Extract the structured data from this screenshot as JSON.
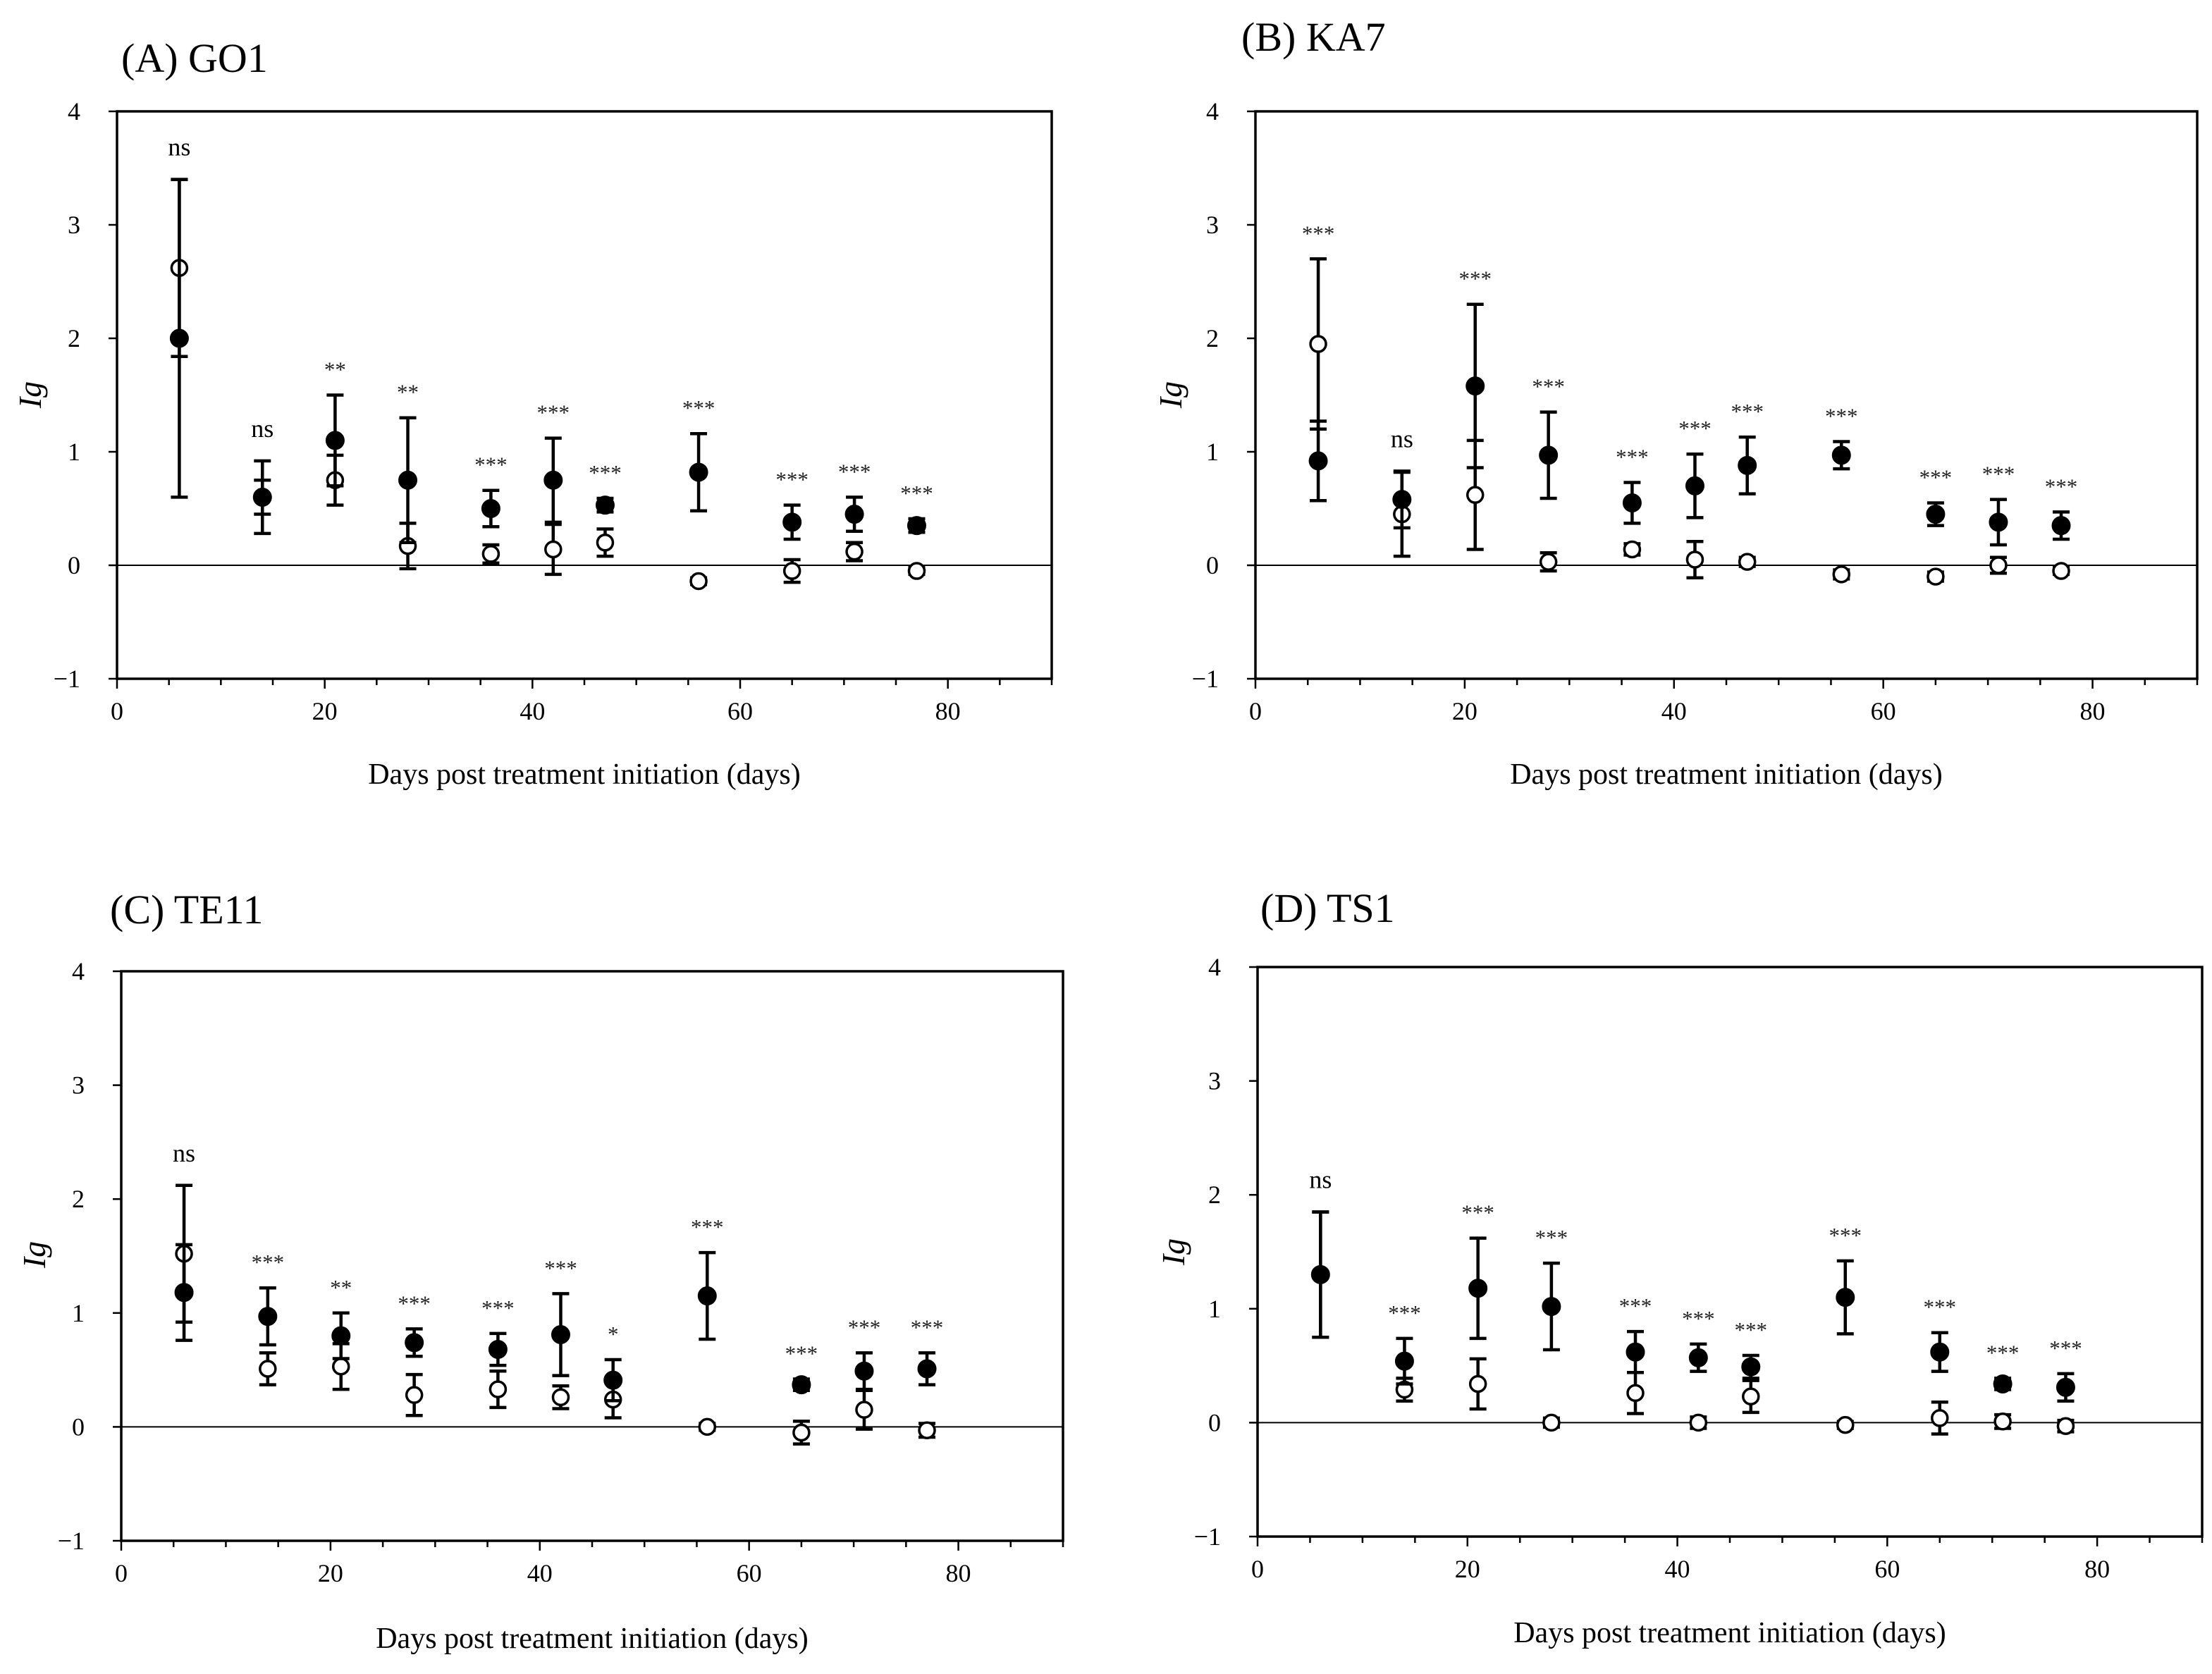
{
  "chart_data": [
    {
      "type": "scatter",
      "title": "(A) GO1",
      "xlabel": "Days post treatment initiation (days)",
      "ylabel": "Ig",
      "xlim": [
        0,
        90
      ],
      "ylim": [
        -1,
        4
      ],
      "xticks": [
        "0",
        "20",
        "40",
        "60",
        "80"
      ],
      "yticks": [
        "−1",
        "0",
        "1",
        "2",
        "3",
        "4"
      ],
      "x": [
        6,
        14,
        21,
        28,
        36,
        42,
        47,
        56,
        65,
        71,
        77
      ],
      "significance": [
        "ns",
        "ns",
        "**",
        "**",
        "***",
        "***",
        "***",
        "***",
        "***",
        "***",
        "***"
      ],
      "series": [
        {
          "name": "filled",
          "style": "filled",
          "values": [
            2.0,
            0.6,
            1.1,
            0.75,
            0.5,
            0.75,
            0.53,
            0.82,
            0.38,
            0.45,
            0.35
          ],
          "errors": [
            1.4,
            0.32,
            0.4,
            0.55,
            0.16,
            0.37,
            0.06,
            0.34,
            0.15,
            0.15,
            0.06
          ]
        },
        {
          "name": "open",
          "style": "open",
          "values": [
            2.62,
            0.6,
            0.75,
            0.17,
            0.1,
            0.14,
            0.2,
            -0.14,
            -0.05,
            0.12,
            -0.05
          ],
          "errors": [
            0.78,
            0.15,
            0.22,
            0.2,
            0.08,
            0.22,
            0.12,
            0.03,
            0.1,
            0.08,
            0.03
          ]
        }
      ]
    },
    {
      "type": "scatter",
      "title": "(B) KA7",
      "xlabel": "Days post treatment initiation (days)",
      "ylabel": "Ig",
      "xlim": [
        0,
        90
      ],
      "ylim": [
        -1,
        4
      ],
      "xticks": [
        "0",
        "20",
        "40",
        "60",
        "80"
      ],
      "yticks": [
        "−1",
        "0",
        "1",
        "2",
        "3",
        "4"
      ],
      "x": [
        6,
        14,
        21,
        28,
        36,
        42,
        47,
        56,
        65,
        71,
        77
      ],
      "significance": [
        "***",
        "ns",
        "***",
        "***",
        "***",
        "***",
        "***",
        "***",
        "***",
        "***",
        "***"
      ],
      "series": [
        {
          "name": "filled",
          "style": "filled",
          "values": [
            0.92,
            0.58,
            1.58,
            0.97,
            0.55,
            0.7,
            0.88,
            0.97,
            0.45,
            0.38,
            0.35
          ],
          "errors": [
            0.35,
            0.25,
            0.72,
            0.38,
            0.18,
            0.28,
            0.25,
            0.12,
            0.1,
            0.2,
            0.12
          ]
        },
        {
          "name": "open",
          "style": "open",
          "values": [
            1.95,
            0.45,
            0.62,
            0.03,
            0.14,
            0.05,
            0.03,
            -0.08,
            -0.1,
            0.0,
            -0.05
          ],
          "errors": [
            0.75,
            0.37,
            0.48,
            0.08,
            0.05,
            0.16,
            0.04,
            0.04,
            0.04,
            0.07,
            0.03
          ]
        }
      ]
    },
    {
      "type": "scatter",
      "title": "(C) TE11",
      "xlabel": "Days post treatment initiation (days)",
      "ylabel": "Ig",
      "xlim": [
        0,
        90
      ],
      "ylim": [
        -1,
        4
      ],
      "xticks": [
        "0",
        "20",
        "40",
        "60",
        "80"
      ],
      "yticks": [
        "−1",
        "0",
        "1",
        "2",
        "3",
        "4"
      ],
      "x": [
        6,
        14,
        21,
        28,
        36,
        42,
        47,
        56,
        65,
        71,
        77
      ],
      "significance": [
        "ns",
        "***",
        "**",
        "***",
        "***",
        "***",
        "*",
        "***",
        "***",
        "***",
        "***"
      ],
      "series": [
        {
          "name": "filled",
          "style": "filled",
          "values": [
            1.18,
            0.97,
            0.8,
            0.74,
            0.68,
            0.81,
            0.41,
            1.15,
            0.37,
            0.49,
            0.51
          ],
          "errors": [
            0.42,
            0.25,
            0.2,
            0.12,
            0.14,
            0.36,
            0.18,
            0.38,
            0.05,
            0.16,
            0.14
          ]
        },
        {
          "name": "open",
          "style": "open",
          "values": [
            1.52,
            0.51,
            0.53,
            0.28,
            0.33,
            0.26,
            0.24,
            0.0,
            -0.05,
            0.15,
            -0.03
          ],
          "errors": [
            0.6,
            0.14,
            0.2,
            0.18,
            0.16,
            0.1,
            0.16,
            0.03,
            0.1,
            0.17,
            0.06
          ]
        }
      ]
    },
    {
      "type": "scatter",
      "title": "(D) TS1",
      "xlabel": "Days post treatment initiation (days)",
      "ylabel": "Ig",
      "xlim": [
        0,
        90
      ],
      "ylim": [
        -1,
        4
      ],
      "xticks": [
        "0",
        "20",
        "40",
        "60",
        "80"
      ],
      "yticks": [
        "−1",
        "0",
        "1",
        "2",
        "3",
        "4"
      ],
      "x": [
        6,
        14,
        21,
        28,
        36,
        42,
        47,
        56,
        65,
        71,
        77
      ],
      "significance": [
        "ns",
        "***",
        "***",
        "***",
        "***",
        "***",
        "***",
        "***",
        "***",
        "***",
        "***"
      ],
      "series": [
        {
          "name": "filled",
          "style": "filled",
          "values": [
            1.3,
            0.54,
            1.18,
            1.02,
            0.62,
            0.57,
            0.49,
            1.1,
            0.62,
            0.34,
            0.31
          ],
          "errors": [
            0.55,
            0.2,
            0.44,
            0.38,
            0.18,
            0.12,
            0.1,
            0.32,
            0.17,
            0.05,
            0.12
          ]
        },
        {
          "name": "open",
          "style": "open",
          "values": [
            1.3,
            0.29,
            0.34,
            0.0,
            0.26,
            0.0,
            0.23,
            -0.02,
            0.04,
            0.01,
            -0.03
          ],
          "errors": [
            0.55,
            0.1,
            0.22,
            0.04,
            0.18,
            0.05,
            0.14,
            0.03,
            0.14,
            0.06,
            0.05
          ]
        }
      ]
    }
  ]
}
